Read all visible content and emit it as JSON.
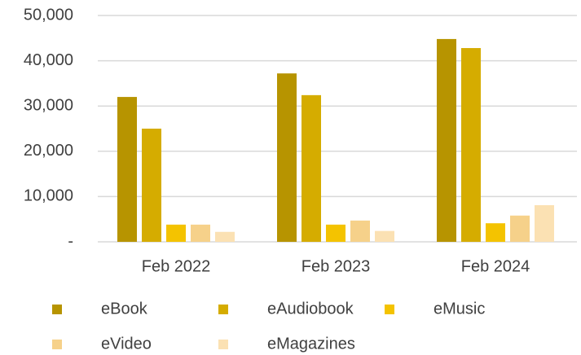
{
  "chart_data": {
    "type": "bar",
    "categories": [
      "Feb 2022",
      "Feb 2023",
      "Feb 2024"
    ],
    "series": [
      {
        "name": "eBook",
        "color": "#b79400",
        "values": [
          32000,
          37200,
          44800
        ]
      },
      {
        "name": "eAudiobook",
        "color": "#d5ac00",
        "values": [
          25000,
          32400,
          42800
        ]
      },
      {
        "name": "eMusic",
        "color": "#f4c300",
        "values": [
          3800,
          3800,
          4100
        ]
      },
      {
        "name": "eVideo",
        "color": "#f6d18a",
        "values": [
          3800,
          4700,
          5800
        ]
      },
      {
        "name": "eMagazines",
        "color": "#fbe1b3",
        "values": [
          2200,
          2400,
          8100
        ]
      }
    ],
    "ylim": [
      0,
      50000
    ],
    "yticks": [
      {
        "value": 0,
        "label": "-"
      },
      {
        "value": 10000,
        "label": "10,000"
      },
      {
        "value": 20000,
        "label": "20,000"
      },
      {
        "value": 30000,
        "label": "30,000"
      },
      {
        "value": 40000,
        "label": "40,000"
      },
      {
        "value": 50000,
        "label": "50,000"
      }
    ],
    "grid": true
  }
}
